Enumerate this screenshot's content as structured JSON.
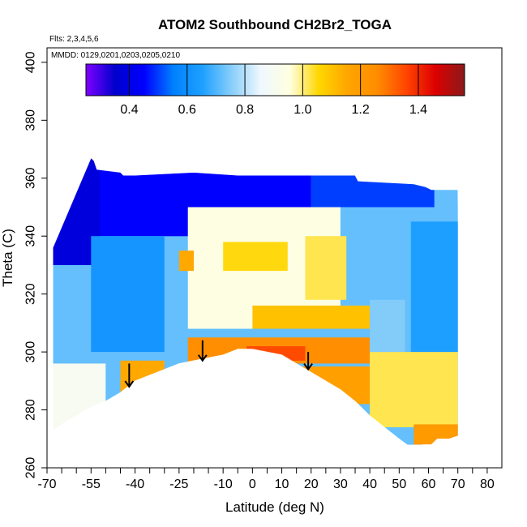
{
  "chart_data": {
    "type": "heatmap",
    "title": "ATOM2 Southbound CH2Br2_TOGA",
    "subtitle_flights": "Flts: 2,3,4,5,6",
    "subtitle_dates": "MMDD: 0129,0201,0203,0205,0210",
    "xlabel": "Latitude (deg N)",
    "ylabel": "Theta (C)",
    "xlim": [
      -70,
      85
    ],
    "ylim": [
      260,
      405
    ],
    "x_ticks": [
      -70,
      -55,
      -40,
      -25,
      -10,
      0,
      10,
      20,
      30,
      40,
      50,
      60,
      70,
      80
    ],
    "x_tick_labels": [
      "-70",
      "-55",
      "-40",
      "-25",
      "-10",
      "0",
      "10",
      "20",
      "30",
      "40",
      "50",
      "60",
      "70",
      "80"
    ],
    "x_minor_ticks": [
      -65,
      -60,
      -50,
      -45,
      -35,
      -30,
      -20,
      -15,
      -5,
      5,
      15,
      25,
      35,
      45,
      55,
      65,
      75
    ],
    "y_ticks": [
      260,
      280,
      300,
      320,
      340,
      360,
      380,
      400
    ],
    "y_tick_labels": [
      "260",
      "280",
      "300",
      "320",
      "340",
      "360",
      "380",
      "400"
    ],
    "colorbar": {
      "range": [
        0.25,
        1.56
      ],
      "ticks": [
        0.4,
        0.6,
        0.8,
        1.0,
        1.2,
        1.4
      ],
      "tick_labels": [
        "0.4",
        "0.6",
        "0.8",
        "1.0",
        "1.2",
        "1.4"
      ],
      "colors": [
        "#7f00ff",
        "#0000cd",
        "#0000ff",
        "#0080ff",
        "#1ea0ff",
        "#87cefa",
        "#f0f8ff",
        "#ffffe0",
        "#ffd700",
        "#ffa500",
        "#ff8c00",
        "#ff4500",
        "#dc0000",
        "#8b1a1a"
      ]
    },
    "envelope_top": [
      [
        -68,
        336
      ],
      [
        -55,
        367
      ],
      [
        -54,
        366
      ],
      [
        -53,
        363
      ],
      [
        -45,
        362
      ],
      [
        -44,
        361
      ],
      [
        -40,
        361
      ],
      [
        -20,
        362
      ],
      [
        -5,
        361
      ],
      [
        10,
        361
      ],
      [
        35,
        361
      ],
      [
        36,
        359
      ],
      [
        55,
        358
      ],
      [
        59,
        357
      ],
      [
        61,
        356
      ],
      [
        70,
        356
      ]
    ],
    "envelope_bottom": [
      [
        72,
        271
      ],
      [
        70,
        271
      ],
      [
        67,
        270
      ],
      [
        63,
        270
      ],
      [
        61,
        268
      ],
      [
        58,
        268
      ],
      [
        54,
        267
      ],
      [
        50,
        270
      ],
      [
        45,
        274
      ],
      [
        40,
        278
      ],
      [
        35,
        283
      ],
      [
        30,
        287
      ],
      [
        20,
        293
      ],
      [
        15,
        296
      ],
      [
        10,
        299
      ],
      [
        0,
        301
      ],
      [
        -5,
        301
      ],
      [
        -10,
        299
      ],
      [
        -20,
        297
      ],
      [
        -25,
        296
      ],
      [
        -30,
        294
      ],
      [
        -35,
        292
      ],
      [
        -40,
        290
      ],
      [
        -45,
        286
      ],
      [
        -50,
        283
      ],
      [
        -55,
        281
      ],
      [
        -60,
        278
      ],
      [
        -65,
        275
      ],
      [
        -68,
        273
      ]
    ],
    "regions": [
      {
        "x": [
          -68,
          70
        ],
        "y": [
          268,
          367
        ],
        "value": 0.72
      },
      {
        "x": [
          -66,
          20
        ],
        "y": [
          340,
          367
        ],
        "value": 0.45
      },
      {
        "x": [
          20,
          62
        ],
        "y": [
          350,
          361
        ],
        "value": 0.5
      },
      {
        "x": [
          -68,
          -52
        ],
        "y": [
          330,
          367
        ],
        "value": 0.38
      },
      {
        "x": [
          -55,
          -30
        ],
        "y": [
          300,
          340
        ],
        "value": 0.62
      },
      {
        "x": [
          -22,
          30
        ],
        "y": [
          308,
          350
        ],
        "value": 0.95
      },
      {
        "x": [
          -25,
          -20
        ],
        "y": [
          328,
          335
        ],
        "value": 1.15
      },
      {
        "x": [
          -10,
          12
        ],
        "y": [
          328,
          338
        ],
        "value": 1.05
      },
      {
        "x": [
          18,
          32
        ],
        "y": [
          318,
          340
        ],
        "value": 1.02
      },
      {
        "x": [
          0,
          40
        ],
        "y": [
          308,
          316
        ],
        "value": 1.1
      },
      {
        "x": [
          -22,
          40
        ],
        "y": [
          296,
          305
        ],
        "value": 1.25
      },
      {
        "x": [
          -2,
          18
        ],
        "y": [
          297,
          302
        ],
        "value": 1.35
      },
      {
        "x": [
          16,
          40
        ],
        "y": [
          282,
          295
        ],
        "value": 1.18
      },
      {
        "x": [
          -45,
          -30
        ],
        "y": [
          285,
          297
        ],
        "value": 1.15
      },
      {
        "x": [
          -68,
          -50
        ],
        "y": [
          272,
          296
        ],
        "value": 0.9
      },
      {
        "x": [
          40,
          70
        ],
        "y": [
          274,
          300
        ],
        "value": 1.02
      },
      {
        "x": [
          55,
          70
        ],
        "y": [
          268,
          275
        ],
        "value": 1.2
      },
      {
        "x": [
          40,
          52
        ],
        "y": [
          300,
          318
        ],
        "value": 0.75
      },
      {
        "x": [
          54,
          70
        ],
        "y": [
          300,
          345
        ],
        "value": 0.65
      }
    ],
    "annotations": [
      {
        "type": "arrow",
        "x": -42,
        "y_top": 296,
        "y_bottom": 288
      },
      {
        "type": "arrow",
        "x": -17,
        "y_top": 304,
        "y_bottom": 297
      },
      {
        "type": "arrow",
        "x": 19,
        "y_top": 300,
        "y_bottom": 294
      }
    ],
    "grid": false,
    "legend": "colorbar top, inside plot"
  }
}
